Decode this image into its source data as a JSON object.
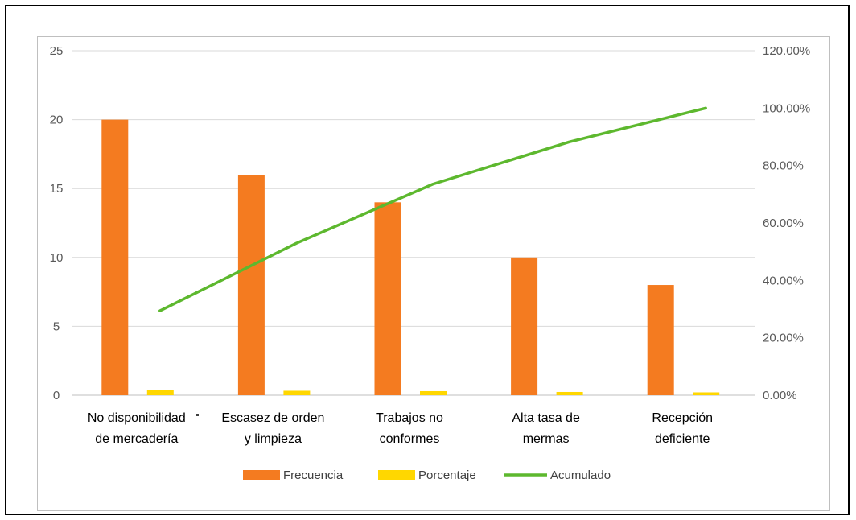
{
  "chart_data": {
    "type": "bar",
    "categories": [
      [
        "No disponibilidad",
        "de mercadería"
      ],
      [
        "Escasez de orden",
        "y limpieza"
      ],
      [
        "Trabajos no",
        "conformes"
      ],
      [
        "Alta tasa de",
        "mermas"
      ],
      [
        "Recepción",
        "deficiente"
      ]
    ],
    "series": [
      {
        "name": "Frecuencia",
        "type": "bar",
        "axis": "left",
        "color": "#F47B20",
        "values": [
          20,
          16,
          14,
          10,
          8
        ]
      },
      {
        "name": "Porcentaje",
        "type": "bar",
        "axis": "left",
        "color": "#FFD700",
        "values": [
          0.2941,
          0.2353,
          0.2059,
          0.1471,
          0.1176
        ]
      },
      {
        "name": "Acumulado",
        "type": "line",
        "axis": "right",
        "color": "#5DB82E",
        "values": [
          0.2941,
          0.5294,
          0.7353,
          0.8824,
          1.0
        ]
      }
    ],
    "left_axis": {
      "min": 0,
      "max": 25,
      "ticks": [
        "0",
        "5",
        "10",
        "15",
        "20",
        "25"
      ]
    },
    "right_axis": {
      "min": 0,
      "max": 1.2,
      "ticks": [
        "0.00%",
        "20.00%",
        "40.00%",
        "60.00%",
        "80.00%",
        "100.00%",
        "120.00%"
      ]
    },
    "grid": true,
    "legend_position": "bottom"
  }
}
